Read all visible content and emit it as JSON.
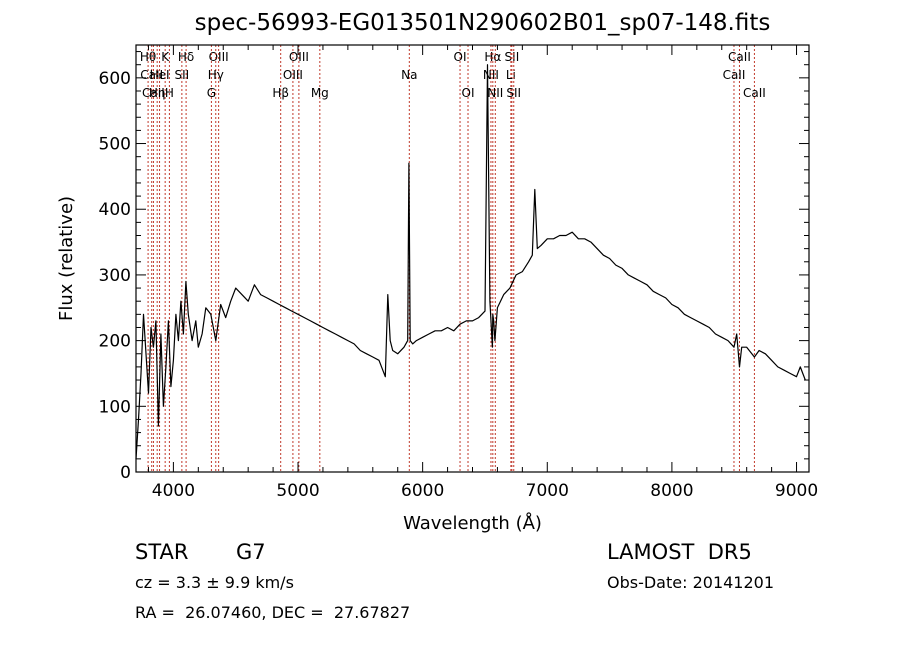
{
  "chart_data": {
    "type": "line",
    "title": "spec-56993-EG013501N290602B01_sp07-148.fits",
    "xlabel": "Wavelength (Å)",
    "ylabel": "Flux (relative)",
    "xlim": [
      3700,
      9100
    ],
    "ylim": [
      0,
      650
    ],
    "xticks": [
      4000,
      5000,
      6000,
      7000,
      8000,
      9000
    ],
    "yticks": [
      0,
      100,
      200,
      300,
      400,
      500,
      600
    ],
    "grid": false,
    "series": [
      {
        "color": "#000000",
        "x": [
          3700,
          3720,
          3740,
          3760,
          3780,
          3800,
          3820,
          3840,
          3860,
          3880,
          3900,
          3920,
          3940,
          3960,
          3980,
          4000,
          4020,
          4040,
          4060,
          4080,
          4100,
          4120,
          4150,
          4180,
          4200,
          4230,
          4260,
          4300,
          4340,
          4380,
          4420,
          4460,
          4500,
          4550,
          4600,
          4650,
          4700,
          4750,
          4800,
          4850,
          4900,
          4950,
          5000,
          5050,
          5100,
          5150,
          5200,
          5250,
          5300,
          5350,
          5400,
          5450,
          5500,
          5550,
          5600,
          5650,
          5700,
          5720,
          5740,
          5760,
          5800,
          5850,
          5880,
          5890,
          5900,
          5920,
          5950,
          6000,
          6050,
          6100,
          6150,
          6200,
          6250,
          6300,
          6350,
          6400,
          6450,
          6500,
          6520,
          6540,
          6560,
          6563,
          6570,
          6580,
          6600,
          6650,
          6700,
          6750,
          6800,
          6850,
          6880,
          6900,
          6920,
          6950,
          7000,
          7050,
          7100,
          7150,
          7200,
          7250,
          7300,
          7350,
          7400,
          7450,
          7500,
          7550,
          7600,
          7650,
          7700,
          7750,
          7800,
          7850,
          7900,
          7950,
          8000,
          8050,
          8100,
          8150,
          8200,
          8250,
          8300,
          8350,
          8400,
          8450,
          8498,
          8520,
          8542,
          8560,
          8600,
          8662,
          8700,
          8750,
          8800,
          8850,
          8900,
          8950,
          9000,
          9030,
          9050,
          9070
        ],
        "y": [
          20,
          80,
          150,
          240,
          180,
          120,
          220,
          190,
          230,
          70,
          210,
          100,
          160,
          230,
          130,
          170,
          240,
          200,
          260,
          210,
          290,
          240,
          200,
          230,
          190,
          210,
          250,
          240,
          200,
          255,
          235,
          260,
          280,
          270,
          260,
          285,
          270,
          265,
          260,
          255,
          250,
          245,
          240,
          235,
          230,
          225,
          220,
          215,
          210,
          205,
          200,
          195,
          185,
          180,
          175,
          170,
          145,
          270,
          200,
          185,
          180,
          190,
          200,
          470,
          200,
          195,
          200,
          205,
          210,
          215,
          215,
          220,
          215,
          225,
          230,
          230,
          235,
          245,
          620,
          260,
          190,
          240,
          230,
          200,
          250,
          270,
          280,
          300,
          305,
          320,
          330,
          430,
          340,
          345,
          355,
          355,
          360,
          360,
          365,
          355,
          355,
          350,
          340,
          330,
          325,
          315,
          310,
          300,
          295,
          290,
          285,
          275,
          270,
          265,
          255,
          250,
          240,
          235,
          230,
          225,
          220,
          210,
          205,
          200,
          190,
          210,
          160,
          190,
          190,
          175,
          185,
          180,
          170,
          160,
          155,
          150,
          145,
          160,
          150,
          140
        ]
      }
    ],
    "lines": [
      {
        "name": "Hθ",
        "x": 3797,
        "row": 0
      },
      {
        "name": "CaII",
        "x": 3826,
        "row": 1
      },
      {
        "name": "CaII",
        "x": 3840,
        "row": 2
      },
      {
        "name": "K",
        "x": 3934,
        "row": 0
      },
      {
        "name": "HeI",
        "x": 3889,
        "row": 1
      },
      {
        "name": "Hη",
        "x": 3870,
        "row": 2
      },
      {
        "name": "H",
        "x": 3968,
        "row": 2
      },
      {
        "name": "Hδ",
        "x": 4102,
        "row": 0
      },
      {
        "name": "SII",
        "x": 4068,
        "row": 1
      },
      {
        "name": "OIII",
        "x": 4363,
        "row": 0
      },
      {
        "name": "Hγ",
        "x": 4340,
        "row": 1
      },
      {
        "name": "G",
        "x": 4305,
        "row": 2
      },
      {
        "name": "OIII",
        "x": 5007,
        "row": 0
      },
      {
        "name": "OIII",
        "x": 4959,
        "row": 1
      },
      {
        "name": "Hβ",
        "x": 4861,
        "row": 2
      },
      {
        "name": "Mg",
        "x": 5175,
        "row": 2
      },
      {
        "name": "Na",
        "x": 5893,
        "row": 1
      },
      {
        "name": "OI",
        "x": 6300,
        "row": 0
      },
      {
        "name": "OI",
        "x": 6364,
        "row": 2
      },
      {
        "name": "Hα",
        "x": 6563,
        "row": 0
      },
      {
        "name": "NII",
        "x": 6548,
        "row": 1
      },
      {
        "name": "NII",
        "x": 6583,
        "row": 2
      },
      {
        "name": "SII",
        "x": 6716,
        "row": 0
      },
      {
        "name": "Li",
        "x": 6708,
        "row": 1
      },
      {
        "name": "SII",
        "x": 6731,
        "row": 2
      },
      {
        "name": "CaII",
        "x": 8542,
        "row": 0
      },
      {
        "name": "CaII",
        "x": 8498,
        "row": 1
      },
      {
        "name": "CaII",
        "x": 8662,
        "row": 2
      }
    ]
  },
  "info": {
    "object_class": "STAR",
    "subclass": "G7",
    "survey": "LAMOST  DR5",
    "velocity": "cz = 3.3 ± 9.9 km/s",
    "obs_date": "Obs-Date: 20141201",
    "coords": "RA =  26.07460, DEC =  27.67827"
  },
  "colors": {
    "axis": "#000000",
    "spectrum": "#000000",
    "line_markers": "#c0392b"
  }
}
